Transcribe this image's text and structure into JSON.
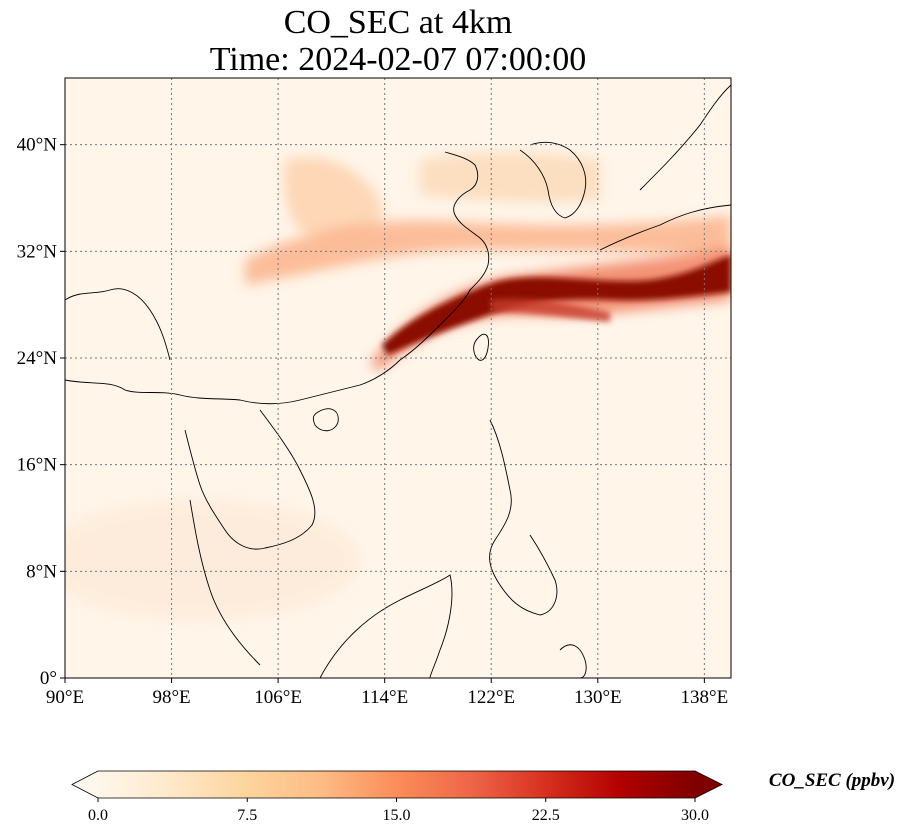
{
  "title": {
    "line1": "CO_SEC at 4km",
    "line2": "Time: 2024-02-07 07:00:00"
  },
  "map": {
    "extent": {
      "lon": [
        90,
        140
      ],
      "lat": [
        0,
        45
      ]
    },
    "projection": "PlateCarree",
    "gridlines": "dotted gray",
    "x_ticks": [
      {
        "value": 90,
        "label": "90°E"
      },
      {
        "value": 98,
        "label": "98°E"
      },
      {
        "value": 106,
        "label": "106°E"
      },
      {
        "value": 114,
        "label": "114°E"
      },
      {
        "value": 122,
        "label": "122°E"
      },
      {
        "value": 130,
        "label": "130°E"
      },
      {
        "value": 138,
        "label": "138°E"
      }
    ],
    "y_ticks": [
      {
        "value": 0,
        "label": "0°"
      },
      {
        "value": 8,
        "label": "8°N"
      },
      {
        "value": 16,
        "label": "16°N"
      },
      {
        "value": 24,
        "label": "24°N"
      },
      {
        "value": 32,
        "label": "32°N"
      },
      {
        "value": 40,
        "label": "40°N"
      }
    ],
    "coastline_color": "#000000",
    "colormap": "OrRd",
    "plumes": [
      {
        "name_hint": "main-band",
        "intensity": "high",
        "approx_lon": [
          117,
          140
        ],
        "approx_lat": [
          23,
          32
        ]
      },
      {
        "name_hint": "north-band",
        "intensity": "medium",
        "approx_lon": [
          104,
          140
        ],
        "approx_lat": [
          30,
          36
        ]
      },
      {
        "name_hint": "northwest-patch",
        "intensity": "low",
        "approx_lon": [
          106,
          113
        ],
        "approx_lat": [
          34,
          39
        ]
      },
      {
        "name_hint": "korea-patch",
        "intensity": "low",
        "approx_lon": [
          120,
          130
        ],
        "approx_lat": [
          36,
          39
        ]
      }
    ]
  },
  "colorbar": {
    "label": "CO_SEC (ppbv)",
    "min": 0.0,
    "max": 30.0,
    "extend": "both",
    "ticks": [
      {
        "value": 0.0,
        "label": "0.0"
      },
      {
        "value": 7.5,
        "label": "7.5"
      },
      {
        "value": 15.0,
        "label": "15.0"
      },
      {
        "value": 22.5,
        "label": "22.5"
      },
      {
        "value": 30.0,
        "label": "30.0"
      }
    ],
    "colors": [
      "#fff7ec",
      "#fee8c8",
      "#fdd49e",
      "#fdbb84",
      "#fc8d59",
      "#ef6548",
      "#d7301f",
      "#b30000",
      "#7f0000"
    ]
  }
}
